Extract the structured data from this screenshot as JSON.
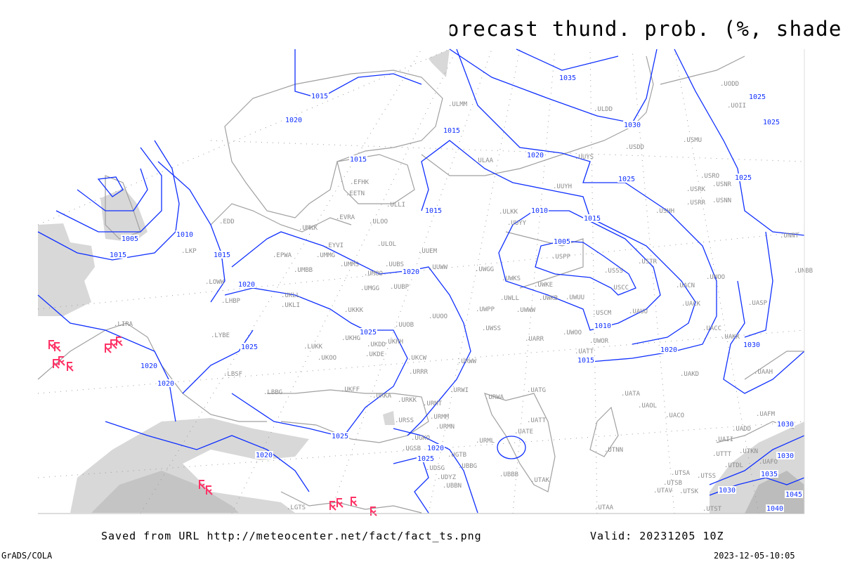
{
  "title": "Current thunderstorms (symbols), forecast thund. prob. (%, shaded)",
  "footer": {
    "saved_from": "Saved from URL http://meteocenter.net/fact/fact_ts.png",
    "valid": "Valid: 20231205 10Z",
    "software": "GrADS/COLA",
    "timestamp": "2023-12-05-10:05"
  },
  "colors": {
    "isobar": "#1030ff",
    "coastline": "#a0a0a0",
    "thunderstorm_symbol": "#ff3366",
    "probability_shading": "#d8d8d8"
  },
  "isobar_labels": [
    "1015",
    "1020",
    "1015",
    "1035",
    "1030",
    "1025",
    "1025",
    "1015",
    "1020",
    "1025",
    "1025",
    "1015",
    "1010",
    "1015",
    "1005",
    "1005",
    "1010",
    "1015",
    "1015",
    "1020",
    "1020",
    "1025",
    "1025",
    "1010",
    "1015",
    "1020",
    "1030",
    "1020",
    "1020",
    "1025",
    "1020",
    "1020",
    "1025",
    "1030",
    "1030",
    "1035",
    "1045",
    "1040",
    "1030"
  ],
  "stations": [
    "EDD",
    "UMKK",
    "EVRA",
    "ULOO",
    "EYVI",
    "ULOL",
    "UUEM",
    "UMMG",
    "EPWA",
    "LKP",
    "UMMS",
    "UMOO",
    "UUBS",
    "UUWW",
    "UMBB",
    "UWGG",
    "LOWW",
    "UMGG",
    "UUBP",
    "UKLL",
    "UKLI",
    "LHBP",
    "UKKK",
    "UWPP",
    "UUOO",
    "UUOB",
    "UWSS",
    "LIRA",
    "LYBE",
    "UKHH",
    "UKHG",
    "UKDD",
    "UKDE",
    "LUKK",
    "UKOO",
    "UKCW",
    "URWW",
    "URRR",
    "LBSF",
    "LBBG",
    "UKFF",
    "URKA",
    "URKK",
    "URWI",
    "URWA",
    "UATG",
    "URMT",
    "URMM",
    "URSS",
    "URMN",
    "UATT",
    "UATE",
    "URML",
    "UGKO",
    "UGSB",
    "UGTB",
    "UDSG",
    "UBBG",
    "UDYZ",
    "UBBB",
    "UBBN",
    "UTAK",
    "LGTS",
    "ULMM",
    "ULDD",
    "ULAA",
    "UUYS",
    "USDD",
    "USMU",
    "UODD",
    "UOII",
    "USRO",
    "USRK",
    "USNR",
    "USRR",
    "USNN",
    "UUYH",
    "USHH",
    "ULKK",
    "UUYY",
    "USPP",
    "USSS",
    "USCC",
    "USTR",
    "UNOO",
    "UACN",
    "UACK",
    "UNNT",
    "UNBB",
    "UASP",
    "UWKS",
    "UWKE",
    "UWKB",
    "UWUU",
    "UWLL",
    "UWWW",
    "USCM",
    "UAUU",
    "UACC",
    "UAKK",
    "UWOO",
    "UWOR",
    "UATT",
    "UARR",
    "UAAH",
    "UAKD",
    "UATA",
    "UAOL",
    "UACO",
    "UAFM",
    "UADD",
    "UAII",
    "UTTT",
    "UTKN",
    "UAFO",
    "UTDL",
    "UTNN",
    "UTSA",
    "UTSS",
    "UTSB",
    "UTAV",
    "UTSK",
    "UTST",
    "UTAA",
    "EFHK",
    "EETN",
    "ULLI"
  ],
  "thunderstorm_reports": 14
}
